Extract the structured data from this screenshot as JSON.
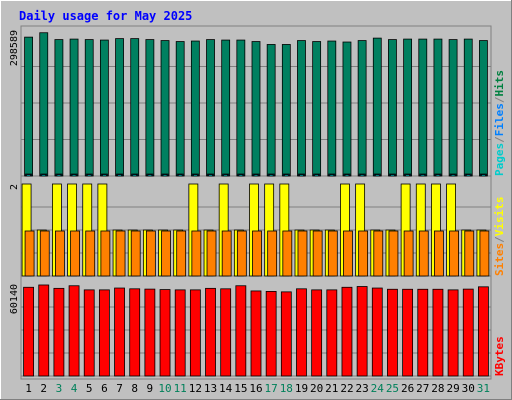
{
  "chart_data": [
    {
      "type": "bar",
      "title": "Daily usage for May 2025",
      "panel": "top",
      "y_max_label": "298589",
      "ylim": [
        0,
        298589
      ],
      "legend": [
        "Pages",
        "/",
        "Files",
        "/",
        "Hits"
      ],
      "legend_colors": [
        "#00cccc",
        "#808080",
        "#0080ff",
        "#808080",
        "#008040"
      ],
      "categories": [
        "1",
        "2",
        "3",
        "4",
        "5",
        "6",
        "7",
        "8",
        "9",
        "10",
        "11",
        "12",
        "13",
        "14",
        "15",
        "16",
        "17",
        "18",
        "19",
        "20",
        "21",
        "22",
        "23",
        "24",
        "25",
        "26",
        "27",
        "28",
        "29",
        "30",
        "31"
      ],
      "weekend_days": [
        "3",
        "4",
        "10",
        "11",
        "17",
        "18",
        "24",
        "25",
        "31"
      ],
      "series": [
        {
          "name": "Hits",
          "color": "#008060",
          "values": [
            284000,
            293000,
            279000,
            280000,
            279000,
            278000,
            281000,
            281000,
            279000,
            277000,
            275000,
            276000,
            279000,
            278000,
            278000,
            275000,
            269000,
            269000,
            277000,
            275000,
            276000,
            274000,
            277000,
            282000,
            279000,
            280000,
            280000,
            280000,
            279000,
            280000,
            277000
          ]
        },
        {
          "name": "Files",
          "color": "#0080ff",
          "values": [
            4000,
            4000,
            4000,
            4000,
            4000,
            4000,
            4000,
            4000,
            4000,
            4000,
            4000,
            4000,
            4000,
            4000,
            4000,
            4000,
            4000,
            4000,
            4000,
            4000,
            4000,
            4000,
            4000,
            4000,
            4000,
            4000,
            4000,
            4000,
            4000,
            4000,
            4000
          ]
        },
        {
          "name": "Pages",
          "color": "#00cccc",
          "values": [
            3000,
            3000,
            3000,
            3000,
            3000,
            3000,
            3000,
            3000,
            3000,
            3000,
            3000,
            3000,
            3000,
            3000,
            3000,
            3000,
            3000,
            3000,
            3000,
            3000,
            3000,
            3000,
            3000,
            3000,
            3000,
            3000,
            3000,
            3000,
            3000,
            3000,
            3000
          ]
        }
      ]
    },
    {
      "type": "bar",
      "panel": "middle",
      "y_max_label": "2",
      "ylim": [
        0,
        2
      ],
      "legend": [
        "Sites",
        "/",
        "Visits"
      ],
      "legend_colors": [
        "#ff8000",
        "#808080",
        "#ffff00"
      ],
      "series": [
        {
          "name": "Visits",
          "color": "#ffff00",
          "values": [
            2,
            1,
            2,
            2,
            2,
            2,
            1,
            1,
            1,
            1,
            1,
            2,
            1,
            2,
            1,
            2,
            2,
            2,
            1,
            1,
            1,
            2,
            2,
            1,
            1,
            2,
            2,
            2,
            2,
            1,
            1
          ]
        },
        {
          "name": "Sites",
          "color": "#ff8000",
          "values": [
            1,
            1,
            1,
            1,
            1,
            1,
            1,
            1,
            1,
            1,
            1,
            1,
            1,
            1,
            1,
            1,
            1,
            1,
            1,
            1,
            1,
            1,
            1,
            1,
            1,
            1,
            1,
            1,
            1,
            1,
            1
          ]
        }
      ]
    },
    {
      "type": "bar",
      "panel": "bottom",
      "y_max_label": "60140",
      "ylim": [
        0,
        60140
      ],
      "legend": [
        "KBytes"
      ],
      "legend_colors": [
        "#ff0000"
      ],
      "series": [
        {
          "name": "KBytes",
          "color": "#ff0000",
          "values": [
            58000,
            59500,
            57300,
            59000,
            56300,
            56300,
            57500,
            57000,
            56800,
            56500,
            56300,
            56300,
            57300,
            57000,
            59000,
            55600,
            55300,
            55000,
            57000,
            56300,
            56300,
            58000,
            58500,
            57500,
            56700,
            56700,
            56700,
            56700,
            56300,
            56800,
            58300
          ]
        }
      ]
    }
  ]
}
